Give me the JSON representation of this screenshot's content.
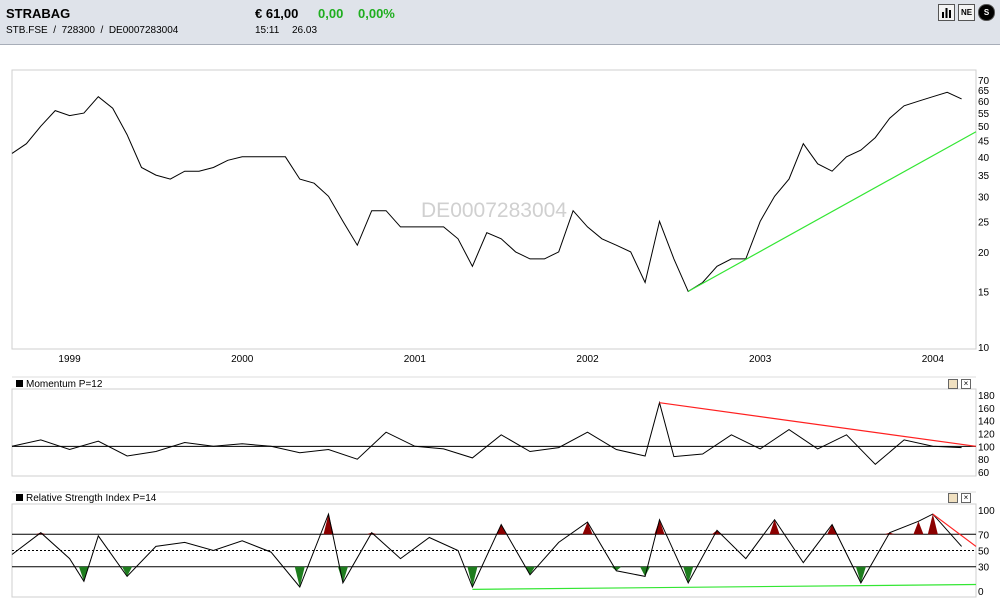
{
  "header": {
    "name": "STRABAG",
    "identifiers": "STB.FSE  /  728300  /  DE0007283004",
    "price": "€ 61,00",
    "change": "0,00",
    "change_pct": "0,00%",
    "time": "15:11",
    "date": "26.03",
    "toolbar": [
      {
        "icon": "bar-chart-icon",
        "label": ""
      },
      {
        "icon": "news-icon",
        "label": "NE"
      },
      {
        "icon": "s-icon",
        "label": "S"
      }
    ]
  },
  "colors": {
    "positive": "#1fae1f",
    "trend_up": "#33e633",
    "trend_down": "#ff2020",
    "rsi_high": "#8b0000",
    "rsi_low": "#1e7d1e"
  },
  "watermark": "DE0007283004",
  "panels": {
    "momentum": {
      "title": "Momentum P=12"
    },
    "rsi": {
      "title": "Relative Strength Index P=14"
    }
  },
  "chart_data": [
    {
      "type": "line",
      "name": "price",
      "x_labels": [
        "1999",
        "2000",
        "2001",
        "2002",
        "2003",
        "2004"
      ],
      "y_ticks": [
        70,
        65,
        60,
        55,
        50,
        45,
        40,
        35,
        30,
        25,
        20,
        15,
        10
      ],
      "scale": "log",
      "ylim": [
        10,
        70
      ],
      "series": [
        {
          "values": [
            [
              "1998-09",
              41
            ],
            [
              "1998-10",
              44
            ],
            [
              "1998-11",
              50
            ],
            [
              "1998-12",
              56
            ],
            [
              "1999-01",
              54
            ],
            [
              "1999-02",
              55
            ],
            [
              "1999-03",
              62
            ],
            [
              "1999-04",
              57
            ],
            [
              "1999-05",
              47
            ],
            [
              "1999-06",
              37
            ],
            [
              "1999-07",
              35
            ],
            [
              "1999-08",
              34
            ],
            [
              "1999-09",
              36
            ],
            [
              "1999-10",
              36
            ],
            [
              "1999-11",
              37
            ],
            [
              "1999-12",
              39
            ],
            [
              "2000-01",
              40
            ],
            [
              "2000-02",
              40
            ],
            [
              "2000-03",
              40
            ],
            [
              "2000-04",
              40
            ],
            [
              "2000-05",
              34
            ],
            [
              "2000-06",
              33
            ],
            [
              "2000-07",
              30
            ],
            [
              "2000-08",
              25
            ],
            [
              "2000-09",
              21
            ],
            [
              "2000-10",
              27
            ],
            [
              "2000-11",
              27
            ],
            [
              "2000-12",
              24
            ],
            [
              "2001-01",
              24
            ],
            [
              "2001-02",
              24
            ],
            [
              "2001-03",
              24
            ],
            [
              "2001-04",
              22
            ],
            [
              "2001-05",
              18
            ],
            [
              "2001-06",
              23
            ],
            [
              "2001-07",
              22
            ],
            [
              "2001-08",
              20
            ],
            [
              "2001-09",
              19
            ],
            [
              "2001-10",
              19
            ],
            [
              "2001-11",
              20
            ],
            [
              "2001-12",
              27
            ],
            [
              "2002-01",
              24
            ],
            [
              "2002-02",
              22
            ],
            [
              "2002-03",
              21
            ],
            [
              "2002-04",
              20
            ],
            [
              "2002-05",
              16
            ],
            [
              "2002-06",
              25
            ],
            [
              "2002-07",
              19
            ],
            [
              "2002-08",
              15
            ],
            [
              "2002-09",
              16
            ],
            [
              "2002-10",
              18
            ],
            [
              "2002-11",
              19
            ],
            [
              "2002-12",
              19
            ],
            [
              "2003-01",
              25
            ],
            [
              "2003-02",
              30
            ],
            [
              "2003-03",
              34
            ],
            [
              "2003-04",
              44
            ],
            [
              "2003-05",
              38
            ],
            [
              "2003-06",
              36
            ],
            [
              "2003-07",
              40
            ],
            [
              "2003-08",
              42
            ],
            [
              "2003-09",
              46
            ],
            [
              "2003-10",
              53
            ],
            [
              "2003-11",
              58
            ],
            [
              "2003-12",
              60
            ],
            [
              "2004-01",
              62
            ],
            [
              "2004-02",
              64
            ],
            [
              "2004-03",
              61
            ]
          ]
        }
      ],
      "trendlines": [
        {
          "from": [
            "2002-08",
            15
          ],
          "to": [
            "2004-04",
            48
          ],
          "color": "green"
        }
      ]
    },
    {
      "type": "line",
      "name": "momentum",
      "title": "Momentum P=12",
      "y_ticks": [
        180,
        160,
        140,
        120,
        100,
        80,
        60
      ],
      "ylim": [
        60,
        180
      ],
      "reference_line": 100,
      "series": [
        {
          "values": [
            [
              "1998-09",
              100
            ],
            [
              "1998-11",
              110
            ],
            [
              "1999-01",
              95
            ],
            [
              "1999-03",
              108
            ],
            [
              "1999-05",
              85
            ],
            [
              "1999-07",
              92
            ],
            [
              "1999-09",
              106
            ],
            [
              "1999-11",
              100
            ],
            [
              "2000-01",
              104
            ],
            [
              "2000-03",
              100
            ],
            [
              "2000-05",
              90
            ],
            [
              "2000-07",
              95
            ],
            [
              "2000-09",
              80
            ],
            [
              "2000-11",
              122
            ],
            [
              "2001-01",
              100
            ],
            [
              "2001-03",
              96
            ],
            [
              "2001-05",
              82
            ],
            [
              "2001-07",
              118
            ],
            [
              "2001-09",
              92
            ],
            [
              "2001-11",
              98
            ],
            [
              "2002-01",
              122
            ],
            [
              "2002-03",
              95
            ],
            [
              "2002-05",
              85
            ],
            [
              "2002-06",
              168
            ],
            [
              "2002-07",
              84
            ],
            [
              "2002-09",
              88
            ],
            [
              "2002-11",
              118
            ],
            [
              "2003-01",
              96
            ],
            [
              "2003-03",
              126
            ],
            [
              "2003-05",
              96
            ],
            [
              "2003-07",
              118
            ],
            [
              "2003-09",
              72
            ],
            [
              "2003-11",
              110
            ],
            [
              "2004-01",
              100
            ],
            [
              "2004-03",
              98
            ]
          ]
        }
      ],
      "trendlines": [
        {
          "from": [
            "2002-06",
            168
          ],
          "to": [
            "2004-04",
            100
          ],
          "color": "red"
        }
      ]
    },
    {
      "type": "line",
      "name": "rsi",
      "title": "Relative Strength Index P=14",
      "y_ticks": [
        100,
        70,
        50,
        30,
        0
      ],
      "ylim": [
        0,
        100
      ],
      "bands": [
        30,
        70
      ],
      "midline": 50,
      "series": [
        {
          "values": [
            [
              "1998-09",
              45
            ],
            [
              "1998-11",
              72
            ],
            [
              "1999-01",
              40
            ],
            [
              "1999-02",
              12
            ],
            [
              "1999-03",
              68
            ],
            [
              "1999-05",
              18
            ],
            [
              "1999-07",
              55
            ],
            [
              "1999-09",
              60
            ],
            [
              "1999-11",
              50
            ],
            [
              "2000-01",
              62
            ],
            [
              "2000-03",
              48
            ],
            [
              "2000-05",
              5
            ],
            [
              "2000-07",
              95
            ],
            [
              "2000-08",
              10
            ],
            [
              "2000-10",
              72
            ],
            [
              "2000-12",
              40
            ],
            [
              "2001-02",
              66
            ],
            [
              "2001-04",
              50
            ],
            [
              "2001-05",
              5
            ],
            [
              "2001-07",
              82
            ],
            [
              "2001-09",
              20
            ],
            [
              "2001-11",
              60
            ],
            [
              "2002-01",
              85
            ],
            [
              "2002-03",
              25
            ],
            [
              "2002-05",
              18
            ],
            [
              "2002-06",
              88
            ],
            [
              "2002-08",
              10
            ],
            [
              "2002-10",
              75
            ],
            [
              "2002-12",
              40
            ],
            [
              "2003-02",
              88
            ],
            [
              "2003-04",
              35
            ],
            [
              "2003-06",
              82
            ],
            [
              "2003-08",
              10
            ],
            [
              "2003-10",
              72
            ],
            [
              "2003-12",
              86
            ],
            [
              "2004-01",
              95
            ],
            [
              "2004-03",
              55
            ]
          ]
        }
      ],
      "trendlines": [
        {
          "from": [
            "2004-01",
            95
          ],
          "to": [
            "2004-04",
            55
          ],
          "color": "red"
        },
        {
          "from": [
            "2001-05",
            2
          ],
          "to": [
            "2004-04",
            8
          ],
          "color": "green"
        }
      ]
    }
  ]
}
